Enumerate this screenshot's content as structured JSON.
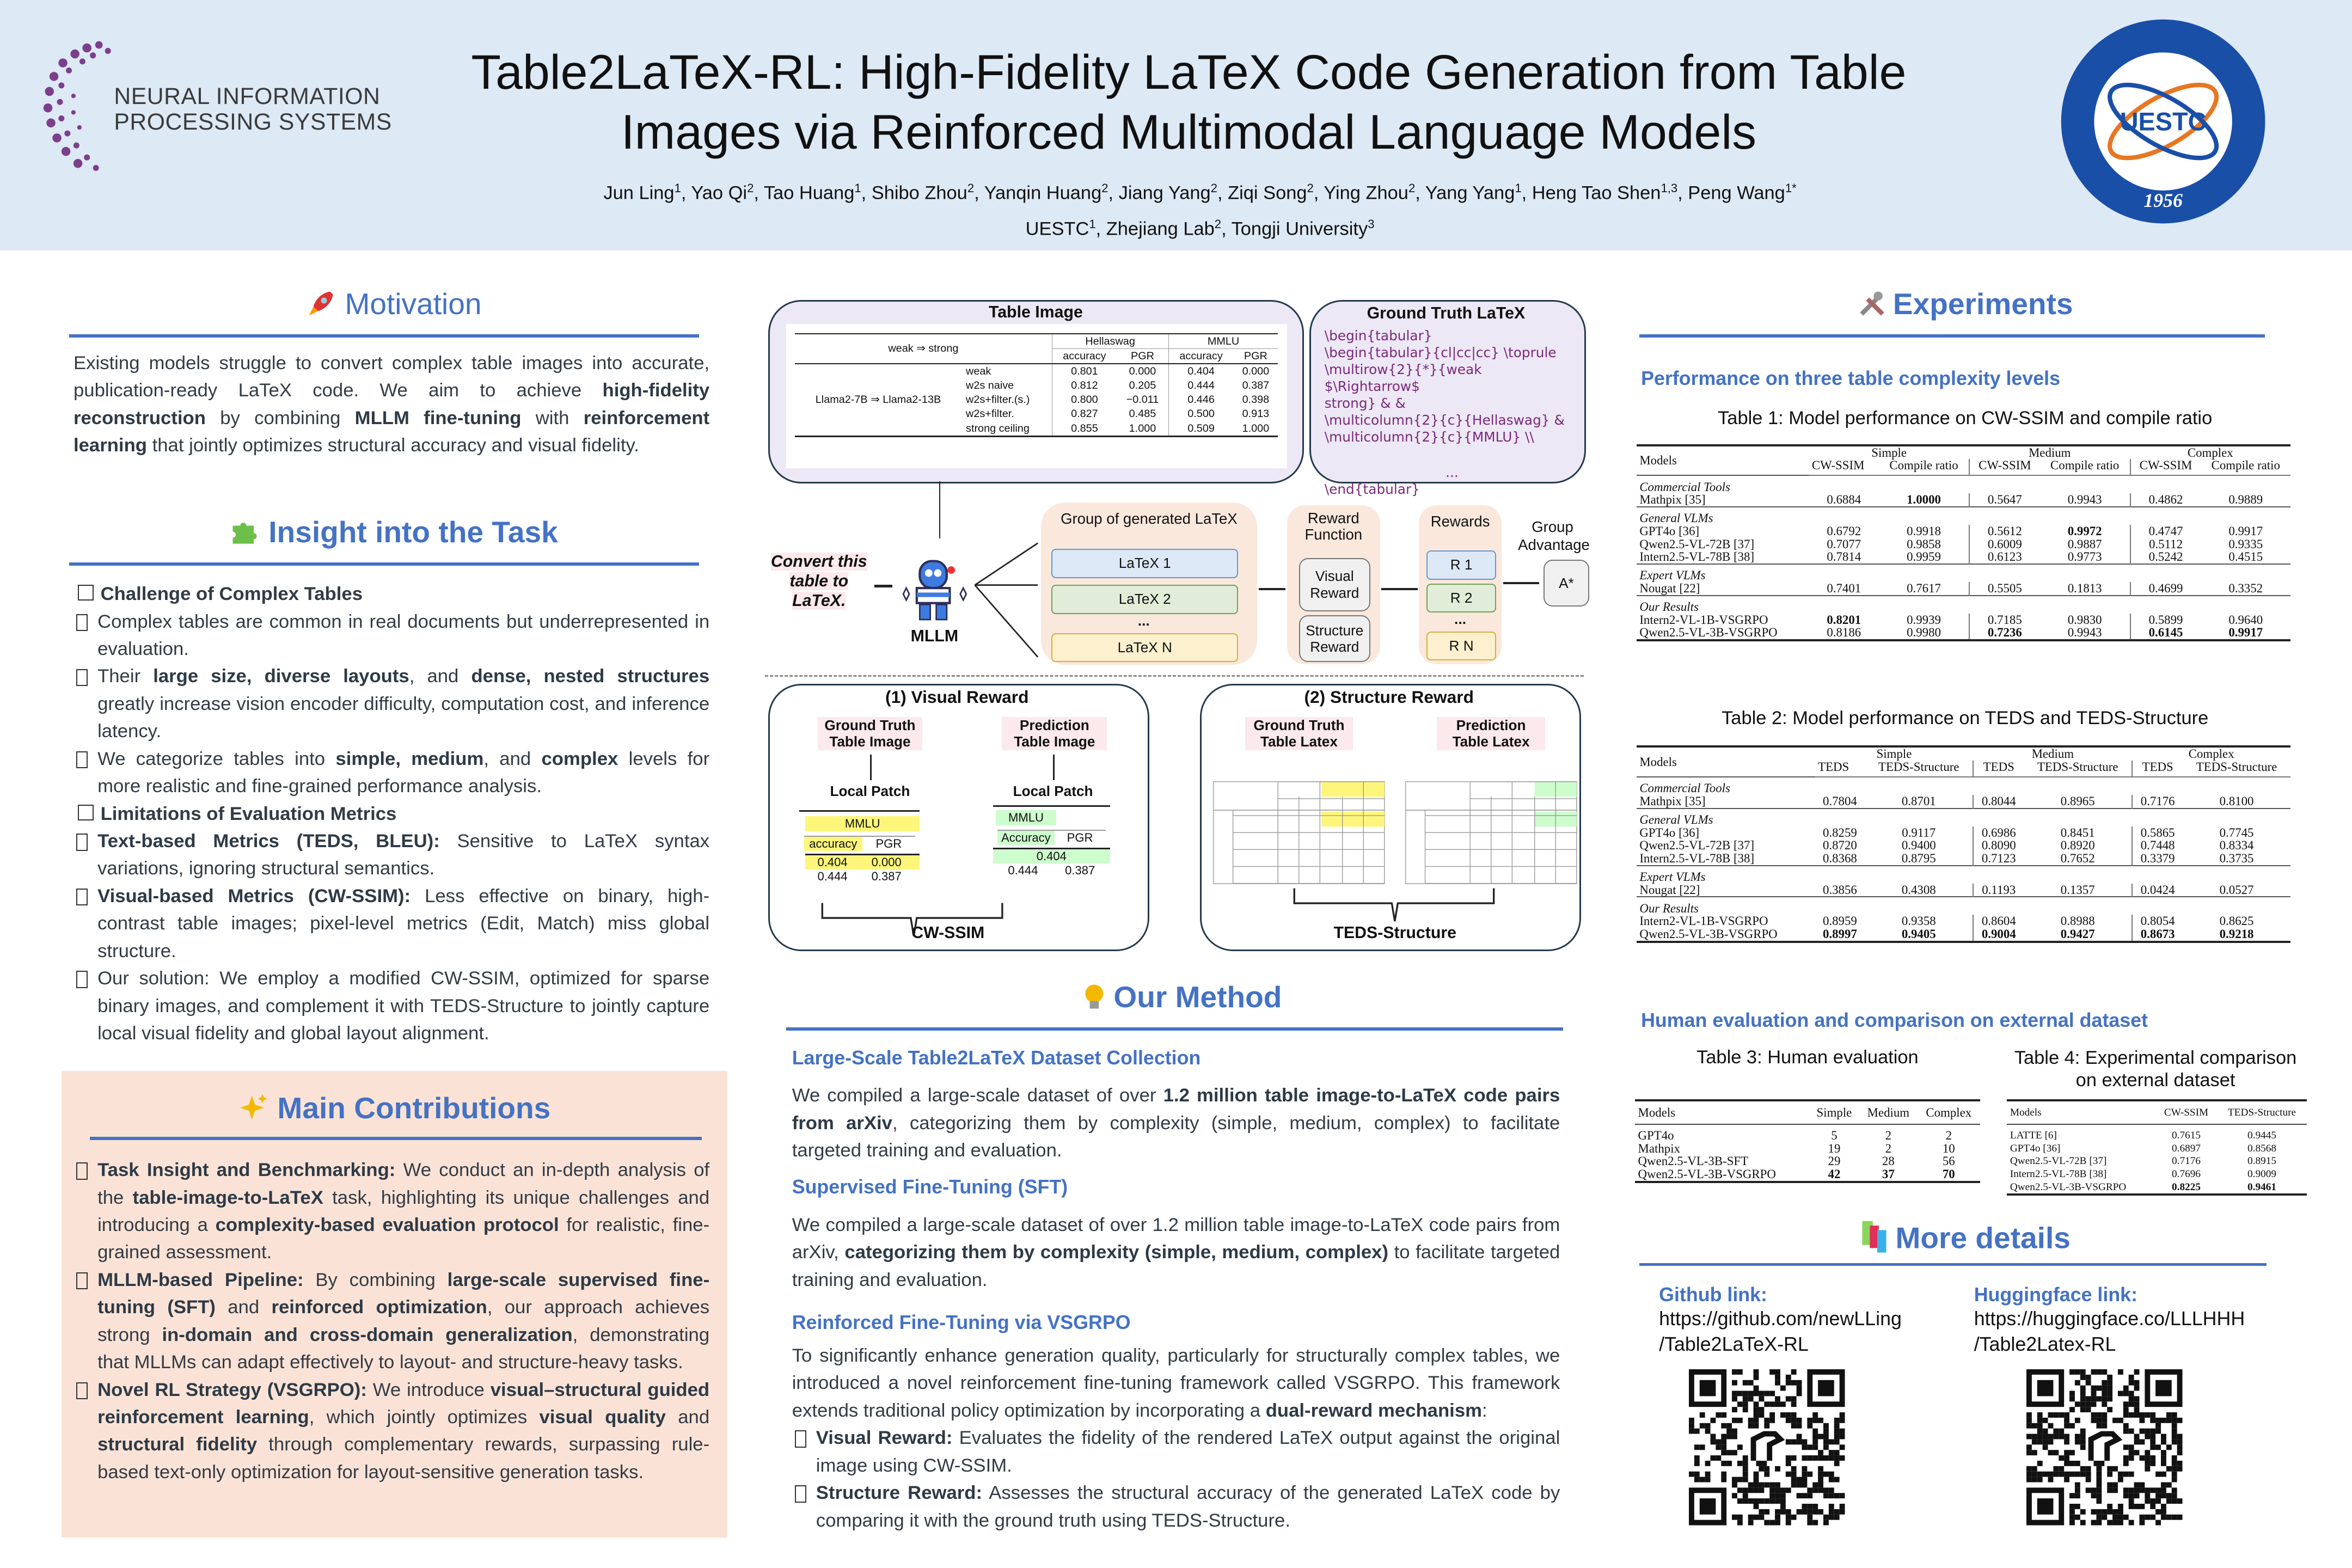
{
  "header": {
    "title_line1": "Table2LaTeX-RL: High-Fidelity LaTeX Code Generation from Table",
    "title_line2": "Images via Reinforced Multimodal Language Models",
    "authors": [
      {
        "name": "Jun Ling",
        "sup": "1"
      },
      {
        "name": "Yao Qi",
        "sup": "2"
      },
      {
        "name": "Tao Huang",
        "sup": "1"
      },
      {
        "name": "Shibo Zhou",
        "sup": "2"
      },
      {
        "name": "Yanqin Huang",
        "sup": "2"
      },
      {
        "name": "Jiang Yang",
        "sup": "2"
      },
      {
        "name": "Ziqi Song",
        "sup": "2"
      },
      {
        "name": "Ying Zhou",
        "sup": "2"
      },
      {
        "name": "Yang Yang",
        "sup": "1"
      },
      {
        "name": "Heng Tao Shen",
        "sup": "1,3"
      },
      {
        "name": "Peng Wang",
        "sup": "1*"
      }
    ],
    "affiliations": [
      {
        "name": "UESTC",
        "sup": "1"
      },
      {
        "name": "Zhejiang Lab",
        "sup": "2"
      },
      {
        "name": "Tongji University",
        "sup": "3"
      }
    ],
    "conf_logo_line1": "NEURAL INFORMATION",
    "conf_logo_line2": "PROCESSING SYSTEMS",
    "seal_text": "UESTC",
    "seal_year": "1956"
  },
  "colors": {
    "accent": "#4472c4",
    "header_bg": "#dde9f5",
    "contrib_bg": "#fae3d6",
    "latex": "#7a2a7a"
  },
  "motivation": {
    "title": "Motivation",
    "icon": "rocket-icon",
    "text": [
      {
        "t": "Existing models struggle to convert complex table images into accurate, publication-ready LaTeX code. We aim to achieve "
      },
      {
        "t": "high-fidelity reconstruction",
        "b": 1
      },
      {
        "t": " by combining "
      },
      {
        "t": "MLLM fine-tuning",
        "b": 1
      },
      {
        "t": " with "
      },
      {
        "t": "reinforcement learning",
        "b": 1
      },
      {
        "t": " that jointly optimizes structural accuracy and visual fidelity."
      }
    ]
  },
  "insight": {
    "title": "Insight into the Task",
    "icon": "puzzle-icon",
    "challenge_heading": "Challenge of Complex Tables",
    "challenge_items": [
      [
        {
          "t": "Complex tables are common in real documents but underrepresented in evaluation."
        }
      ],
      [
        {
          "t": "Their "
        },
        {
          "t": "large size, diverse layouts",
          "b": 1
        },
        {
          "t": ", and "
        },
        {
          "t": "dense, nested structures",
          "b": 1
        },
        {
          "t": " greatly increase vision encoder difficulty, computation cost, and inference latency."
        }
      ],
      [
        {
          "t": "We categorize tables into "
        },
        {
          "t": "simple, medium",
          "b": 1
        },
        {
          "t": ", and "
        },
        {
          "t": "complex",
          "b": 1
        },
        {
          "t": " levels for more realistic and fine-grained performance analysis."
        }
      ]
    ],
    "limits_heading": "Limitations of Evaluation Metrics",
    "limits_items": [
      [
        {
          "t": "Text-based Metrics (TEDS, BLEU):",
          "b": 1
        },
        {
          "t": " Sensitive to LaTeX syntax variations, ignoring structural semantics."
        }
      ],
      [
        {
          "t": "Visual-based Metrics (CW-SSIM):",
          "b": 1
        },
        {
          "t": " Less effective on binary, high-contrast table images; pixel-level metrics (Edit, Match) miss global structure."
        }
      ],
      [
        {
          "t": "Our solution: We employ a modified CW-SSIM, optimized for sparse binary images, and complement it with TEDS-Structure to jointly capture local visual fidelity and global layout alignment."
        }
      ]
    ]
  },
  "contributions": {
    "title": "Main Contributions",
    "icon": "sparkles-icon",
    "items": [
      [
        {
          "t": "Task Insight and Benchmarking:",
          "b": 1
        },
        {
          "t": " We conduct an in-depth analysis of the "
        },
        {
          "t": "table-image-to-LaTeX",
          "b": 1
        },
        {
          "t": " task, highlighting its unique challenges and introducing a "
        },
        {
          "t": "complexity-based evaluation protocol",
          "b": 1
        },
        {
          "t": " for realistic, fine-grained assessment."
        }
      ],
      [
        {
          "t": "MLLM-based Pipeline:",
          "b": 1
        },
        {
          "t": " By combining "
        },
        {
          "t": "large-scale supervised fine-tuning (SFT)",
          "b": 1
        },
        {
          "t": " and "
        },
        {
          "t": "reinforced optimization",
          "b": 1
        },
        {
          "t": ", our approach achieves strong "
        },
        {
          "t": "in-domain and cross-domain generalization",
          "b": 1
        },
        {
          "t": ", demonstrating that MLLMs can adapt effectively to layout- and structure-heavy tasks."
        }
      ],
      [
        {
          "t": "Novel RL Strategy (VSGRPO):",
          "b": 1
        },
        {
          "t": " We introduce "
        },
        {
          "t": "visual–structural guided reinforcement learning",
          "b": 1
        },
        {
          "t": ", which jointly optimizes "
        },
        {
          "t": "visual quality",
          "b": 1
        },
        {
          "t": " and "
        },
        {
          "t": "structural fidelity",
          "b": 1
        },
        {
          "t": " through complementary rewards, surpassing rule-based text-only optimization for layout-sensitive generation tasks."
        }
      ]
    ]
  },
  "diagram": {
    "table_image_title": "Table Image",
    "gt_latex_title": "Ground Truth LaTeX",
    "sample_table": {
      "row_header": "weak ⇒ strong",
      "groups": [
        "Hellaswag",
        "MMLU"
      ],
      "subcols": [
        "accuracy",
        "PGR",
        "accuracy",
        "PGR"
      ],
      "model": "Llama2-7B ⇒ Llama2-13B",
      "rows": [
        {
          "name": "weak",
          "v": [
            "0.801",
            "0.000",
            "0.404",
            "0.000"
          ]
        },
        {
          "name": "w2s naive",
          "v": [
            "0.812",
            "0.205",
            "0.444",
            "0.387"
          ]
        },
        {
          "name": "w2s+filter.(s.)",
          "v": [
            "0.800",
            "−0.011",
            "0.446",
            "0.398"
          ]
        },
        {
          "name": "w2s+filter.",
          "v": [
            "0.827",
            "0.485",
            "0.500",
            "0.913"
          ]
        },
        {
          "name": "strong ceiling",
          "v": [
            "0.855",
            "1.000",
            "0.509",
            "1.000"
          ]
        }
      ]
    },
    "gt_latex_lines": [
      "\\begin{tabular}",
      "\\begin{tabular}{cl|cc|cc}     \\toprule",
      "\\multirow{2}{*}{weak $\\Rightarrow$",
      "strong} & &",
      "\\multicolumn{2}{c}{Hellaswag} &",
      "\\multicolumn{2}{c}{MMLU} \\\\",
      "...",
      "\\end{tabular}"
    ],
    "prompt": "Convert this table to LaTeX.",
    "mllm_label": "MLLM",
    "group_title": "Group of generated LaTeX",
    "latex_outputs": [
      "LaTeX 1",
      "LaTeX 2",
      "...",
      "LaTeX N"
    ],
    "reward_function_title": "Reward Function",
    "reward_visual": "Visual Reward",
    "reward_structure": "Structure Reward",
    "rewards_title": "Rewards",
    "rewards": [
      "R 1",
      "R 2",
      "...",
      "R N"
    ],
    "group_adv_title": "Group Advantage",
    "adv": "A*",
    "visual_title": "(1) Visual Reward",
    "structure_title": "(2) Structure Reward",
    "gt_image": "Ground Truth Table Image",
    "pred_image": "Prediction Table Image",
    "local_patch": "Local Patch",
    "gt_patch": {
      "head": "MMLU",
      "sub": [
        "accuracy",
        "PGR"
      ],
      "r1": [
        "0.404",
        "0.000"
      ],
      "r2": [
        "0.444",
        "0.387"
      ]
    },
    "pred_patch": {
      "head": "MMLU",
      "sub": [
        "Accuracy",
        "PGR"
      ],
      "r1": [
        "0.404"
      ],
      "r2": [
        "0.444",
        "0.387"
      ]
    },
    "cw_ssim": "CW-SSIM",
    "gt_latex": "Ground Truth Table Latex",
    "pred_latex": "Prediction Table Latex",
    "teds_structure": "TEDS-Structure"
  },
  "method": {
    "title": "Our Method",
    "icon": "lightbulb-icon",
    "s1_title": "Large-Scale Table2LaTeX Dataset Collection",
    "s1_text": [
      {
        "t": "We compiled a large-scale dataset of over "
      },
      {
        "t": "1.2 million table image-to-LaTeX code pairs from arXiv",
        "b": 1
      },
      {
        "t": ", categorizing them by complexity (simple, medium, complex) to facilitate targeted training and evaluation."
      }
    ],
    "s2_title": "Supervised Fine-Tuning (SFT)",
    "s2_text": [
      {
        "t": "We compiled a large-scale dataset of over 1.2 million table image-to-LaTeX code pairs from arXiv, "
      },
      {
        "t": "categorizing them by complexity (simple, medium, complex)",
        "b": 1
      },
      {
        "t": " to facilitate targeted training and evaluation."
      }
    ],
    "s3_title": "Reinforced Fine-Tuning via VSGRPO",
    "s3_text": [
      {
        "t": "To significantly enhance generation quality, particularly for structurally complex tables, we introduced a novel reinforcement fine-tuning framework called VSGRPO. This framework extends traditional policy optimization by incorporating a "
      },
      {
        "t": "dual-reward mechanism",
        "b": 1
      },
      {
        "t": ":"
      }
    ],
    "s3_items": [
      [
        {
          "t": "Visual Reward:",
          "b": 1
        },
        {
          "t": " Evaluates the fidelity of the rendered LaTeX output against the original image using CW-SSIM."
        }
      ],
      [
        {
          "t": "Structure Reward:",
          "b": 1
        },
        {
          "t": " Assesses the structural accuracy of the generated LaTeX code by comparing it with the ground truth using TEDS-Structure."
        }
      ]
    ]
  },
  "experiments": {
    "title": "Experiments",
    "icon": "tools-icon",
    "sub1": "Performance on three table complexity levels",
    "table1": {
      "caption": "Table 1: Model performance on CW-SSIM and compile ratio",
      "groups": [
        "Simple",
        "Medium",
        "Complex"
      ],
      "subcols": [
        "CW-SSIM",
        "Compile ratio",
        "CW-SSIM",
        "Compile ratio",
        "CW-SSIM",
        "Compile ratio"
      ],
      "sections": [
        {
          "name": "Commercial Tools",
          "rows": [
            {
              "model": "Mathpix [35]",
              "v": [
                "0.6884",
                "1.0000",
                "0.5647",
                "0.9943",
                "0.4862",
                "0.9889"
              ],
              "bold": [
                1
              ]
            }
          ]
        },
        {
          "name": "General VLMs",
          "rows": [
            {
              "model": "GPT4o [36]",
              "v": [
                "0.6792",
                "0.9918",
                "0.5612",
                "0.9972",
                "0.4747",
                "0.9917"
              ],
              "bold": [
                3
              ]
            },
            {
              "model": "Qwen2.5-VL-72B [37]",
              "v": [
                "0.7077",
                "0.9858",
                "0.6009",
                "0.9887",
                "0.5112",
                "0.9335"
              ],
              "bold": []
            },
            {
              "model": "Intern2.5-VL-78B [38]",
              "v": [
                "0.7814",
                "0.9959",
                "0.6123",
                "0.9773",
                "0.5242",
                "0.4515"
              ],
              "bold": []
            }
          ]
        },
        {
          "name": "Expert VLMs",
          "rows": [
            {
              "model": "Nougat [22]",
              "v": [
                "0.7401",
                "0.7617",
                "0.5505",
                "0.1813",
                "0.4699",
                "0.3352"
              ],
              "bold": []
            }
          ]
        },
        {
          "name": "Our Results",
          "rows": [
            {
              "model": "Intern2-VL-1B-VSGRPO",
              "v": [
                "0.8201",
                "0.9939",
                "0.7185",
                "0.9830",
                "0.5899",
                "0.9640"
              ],
              "bold": [
                0
              ]
            },
            {
              "model": "Qwen2.5-VL-3B-VSGRPO",
              "v": [
                "0.8186",
                "0.9980",
                "0.7236",
                "0.9943",
                "0.6145",
                "0.9917"
              ],
              "bold": [
                2,
                4,
                5
              ]
            }
          ]
        }
      ]
    },
    "table2": {
      "caption": "Table 2: Model performance on TEDS and TEDS-Structure",
      "groups": [
        "Simple",
        "Medium",
        "Complex"
      ],
      "subcols": [
        "TEDS",
        "TEDS-Structure",
        "TEDS",
        "TEDS-Structure",
        "TEDS",
        "TEDS-Structure"
      ],
      "sections": [
        {
          "name": "Commercial Tools",
          "rows": [
            {
              "model": "Mathpix [35]",
              "v": [
                "0.7804",
                "0.8701",
                "0.8044",
                "0.8965",
                "0.7176",
                "0.8100"
              ],
              "bold": []
            }
          ]
        },
        {
          "name": "General VLMs",
          "rows": [
            {
              "model": "GPT4o [36]",
              "v": [
                "0.8259",
                "0.9117",
                "0.6986",
                "0.8451",
                "0.5865",
                "0.7745"
              ],
              "bold": []
            },
            {
              "model": "Qwen2.5-VL-72B [37]",
              "v": [
                "0.8720",
                "0.9400",
                "0.8090",
                "0.8920",
                "0.7448",
                "0.8334"
              ],
              "bold": []
            },
            {
              "model": "Intern2.5-VL-78B [38]",
              "v": [
                "0.8368",
                "0.8795",
                "0.7123",
                "0.7652",
                "0.3379",
                "0.3735"
              ],
              "bold": []
            }
          ]
        },
        {
          "name": "Expert VLMs",
          "rows": [
            {
              "model": "Nougat [22]",
              "v": [
                "0.3856",
                "0.4308",
                "0.1193",
                "0.1357",
                "0.0424",
                "0.0527"
              ],
              "bold": []
            }
          ]
        },
        {
          "name": "Our Results",
          "rows": [
            {
              "model": "Intern2-VL-1B-VSGRPO",
              "v": [
                "0.8959",
                "0.9358",
                "0.8604",
                "0.8988",
                "0.8054",
                "0.8625"
              ],
              "bold": []
            },
            {
              "model": "Qwen2.5-VL-3B-VSGRPO",
              "v": [
                "0.8997",
                "0.9405",
                "0.9004",
                "0.9427",
                "0.8673",
                "0.9218"
              ],
              "bold": [
                0,
                1,
                2,
                3,
                4,
                5
              ]
            }
          ]
        }
      ]
    },
    "sub2": "Human evaluation and comparison on external dataset",
    "table3": {
      "caption": "Table 3: Human evaluation",
      "cols": [
        "Models",
        "Simple",
        "Medium",
        "Complex"
      ],
      "rows": [
        {
          "model": "GPT4o",
          "v": [
            "5",
            "2",
            "2"
          ],
          "bold": []
        },
        {
          "model": "Mathpix",
          "v": [
            "19",
            "2",
            "10"
          ],
          "bold": []
        },
        {
          "model": "Qwen2.5-VL-3B-SFT",
          "v": [
            "29",
            "28",
            "56"
          ],
          "bold": []
        },
        {
          "model": "Qwen2.5-VL-3B-VSGRPO",
          "v": [
            "42",
            "37",
            "70"
          ],
          "bold": [
            0,
            1,
            2
          ]
        }
      ]
    },
    "table4": {
      "caption_line1": "Table 4: Experimental comparison",
      "caption_line2": "on external dataset",
      "cols": [
        "Models",
        "CW-SSIM",
        "TEDS-Structure"
      ],
      "rows": [
        {
          "model": "LATTE [6]",
          "v": [
            "0.7615",
            "0.9445"
          ],
          "bold": []
        },
        {
          "model": "GPT4o [36]",
          "v": [
            "0.6897",
            "0.8568"
          ],
          "bold": []
        },
        {
          "model": "Qwen2.5-VL-72B [37]",
          "v": [
            "0.7176",
            "0.8915"
          ],
          "bold": []
        },
        {
          "model": "Intern2.5-VL-78B [38]",
          "v": [
            "0.7696",
            "0.9009"
          ],
          "bold": []
        },
        {
          "model": "Qwen2.5-VL-3B-VSGRPO",
          "v": [
            "0.8225",
            "0.9461"
          ],
          "bold": [
            0,
            1
          ]
        }
      ]
    }
  },
  "more": {
    "title": "More details",
    "icon": "books-icon",
    "github_label": "Github link:",
    "github_url_line1": "https://github.com/newLLing",
    "github_url_line2": "/Table2LaTeX-RL",
    "hf_label": "Huggingface link:",
    "hf_url_line1": "https://huggingface.co/LLLHHH",
    "hf_url_line2": "/Table2Latex-RL"
  }
}
